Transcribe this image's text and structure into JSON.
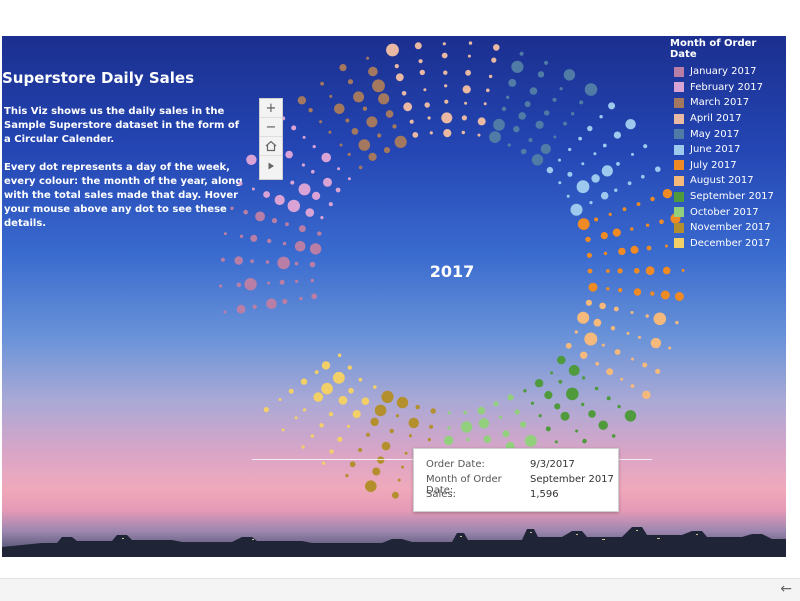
{
  "dashboard": {
    "title": "Superstore Daily Sales",
    "description_1": "This Viz shows us the daily sales in the Sample Superstore dataset in the form of a Circular Calender.",
    "description_2": "Every dot represents a day of the week, every colour: the month of the year, along with the total sales made that day. Hover your mouse above any dot to see these details."
  },
  "zoom_controls": {
    "zoom_in": "+",
    "zoom_out": "−",
    "home_icon": "home-icon",
    "pan_icon": "play-icon"
  },
  "center_label": "2017",
  "legend": {
    "title": "Month of Order Date",
    "items": [
      {
        "label": "January 2017",
        "color": "#b97ea5"
      },
      {
        "label": "February 2017",
        "color": "#d9a3d6"
      },
      {
        "label": "March 2017",
        "color": "#a3785e"
      },
      {
        "label": "April 2017",
        "color": "#e9b9a3"
      },
      {
        "label": "May 2017",
        "color": "#4f7ba6"
      },
      {
        "label": "June 2017",
        "color": "#9ec9ef"
      },
      {
        "label": "July 2017",
        "color": "#f08a24"
      },
      {
        "label": "August 2017",
        "color": "#f6b97c"
      },
      {
        "label": "September 2017",
        "color": "#4e9a3d"
      },
      {
        "label": "October 2017",
        "color": "#93d07e"
      },
      {
        "label": "November 2017",
        "color": "#b48f2d"
      },
      {
        "label": "December 2017",
        "color": "#f3cf68"
      }
    ]
  },
  "tooltip": {
    "order_date_label": "Order Date:",
    "order_date_value": "9/3/2017",
    "month_label": "Month of Order Date:",
    "month_value": "September 2017",
    "sales_label": "Sales:",
    "sales_value": "1,596"
  },
  "footer": {
    "back_icon": "arrow-left-icon",
    "back_glyph": "←"
  }
}
